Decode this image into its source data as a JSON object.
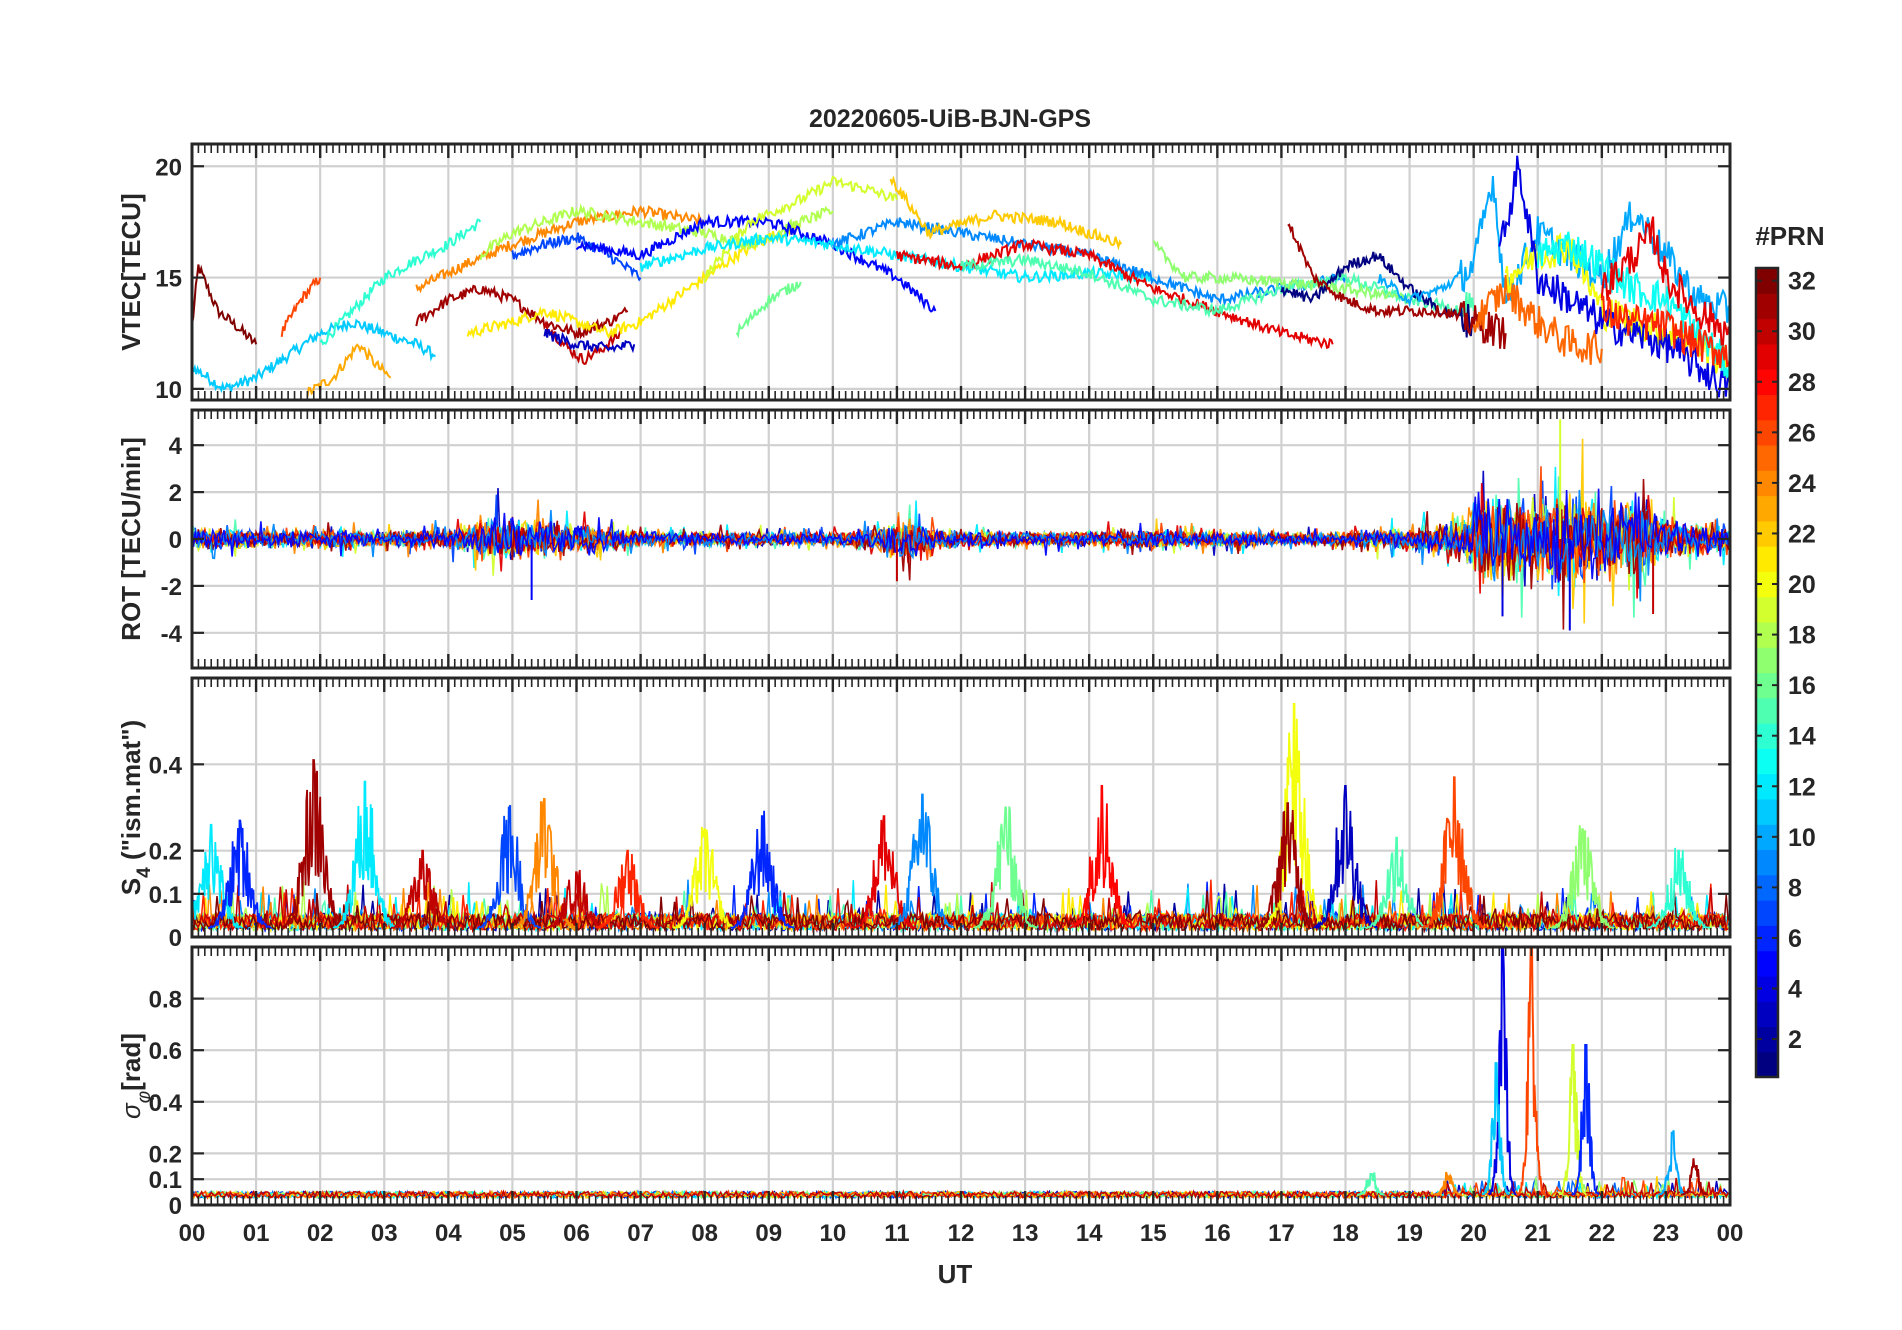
{
  "figure": {
    "title": "20220605-UiB-BJN-GPS",
    "xlabel": "UT",
    "colorbar_label": "#PRN"
  },
  "chart_data": [
    {
      "type": "line",
      "panel": "vtec",
      "ylabel": "VTEC[TECU]",
      "xlim": [
        0,
        24
      ],
      "ylim": [
        9.5,
        21
      ],
      "yticks": [
        10,
        15,
        20
      ],
      "xticks": [
        0,
        1,
        2,
        3,
        4,
        5,
        6,
        7,
        8,
        9,
        10,
        11,
        12,
        13,
        14,
        15,
        16,
        17,
        18,
        19,
        20,
        21,
        22,
        23,
        24
      ],
      "xticklabels": [
        "00",
        "01",
        "02",
        "03",
        "04",
        "05",
        "06",
        "07",
        "08",
        "09",
        "10",
        "11",
        "12",
        "13",
        "14",
        "15",
        "16",
        "17",
        "18",
        "19",
        "20",
        "21",
        "22",
        "23",
        "00"
      ],
      "grid": true,
      "series": [
        {
          "prn": 32,
          "x": [
            0.0,
            0.1,
            0.4,
            0.7,
            1.0
          ],
          "y": [
            12.8,
            15.5,
            13.5,
            12.8,
            12.0
          ]
        },
        {
          "prn": 11,
          "x": [
            0.0,
            0.5,
            1.0,
            1.5,
            2.0,
            2.5,
            3.0,
            3.5,
            3.8
          ],
          "y": [
            11.0,
            10.0,
            10.5,
            11.5,
            12.5,
            13.0,
            12.5,
            12.0,
            11.5
          ]
        },
        {
          "prn": 26,
          "x": [
            1.4,
            1.7,
            2.0
          ],
          "y": [
            12.5,
            14.0,
            15.0
          ]
        },
        {
          "prn": 23,
          "x": [
            1.8,
            2.2,
            2.6,
            2.9,
            3.1
          ],
          "y": [
            9.8,
            10.5,
            12.0,
            11.0,
            10.5
          ]
        },
        {
          "prn": 14,
          "x": [
            2.0,
            2.5,
            3.0,
            3.5,
            4.0,
            4.5
          ],
          "y": [
            12.0,
            13.5,
            15.0,
            15.8,
            16.5,
            17.5
          ]
        },
        {
          "prn": 24,
          "x": [
            3.5,
            4.2,
            5.0,
            6.0,
            7.0,
            8.0
          ],
          "y": [
            14.5,
            15.5,
            16.5,
            17.5,
            18.0,
            17.5
          ]
        },
        {
          "prn": 31,
          "x": [
            3.5,
            4.0,
            4.5,
            5.0,
            5.5,
            6.0,
            6.5,
            6.8
          ],
          "y": [
            13.0,
            14.0,
            14.5,
            14.0,
            13.0,
            12.5,
            13.0,
            13.5
          ]
        },
        {
          "prn": 30,
          "x": [
            5.5,
            5.8,
            6.1,
            6.4,
            6.7
          ],
          "y": [
            13.0,
            12.0,
            11.3,
            11.8,
            12.5
          ]
        },
        {
          "prn": 21,
          "x": [
            4.3,
            5.0,
            5.5,
            6.0,
            6.5,
            7.0,
            7.5,
            8.0,
            8.5,
            9.0,
            9.5
          ],
          "y": [
            12.5,
            13.0,
            13.5,
            13.0,
            12.5,
            13.0,
            14.0,
            15.0,
            16.0,
            16.8,
            17.3
          ]
        },
        {
          "prn": 18,
          "x": [
            4.5,
            5.0,
            6.0,
            7.0,
            8.0,
            8.7,
            9.5,
            10.0
          ],
          "y": [
            16.0,
            17.0,
            18.0,
            17.5,
            17.0,
            16.5,
            17.5,
            18.0
          ]
        },
        {
          "prn": 7,
          "x": [
            5.0,
            5.5,
            6.0,
            6.5,
            7.0
          ],
          "y": [
            16.0,
            16.5,
            16.8,
            16.0,
            15.0
          ]
        },
        {
          "prn": 3,
          "x": [
            5.5,
            6.0,
            6.5,
            6.9
          ],
          "y": [
            12.5,
            12.0,
            11.8,
            12.0
          ]
        },
        {
          "prn": 5,
          "x": [
            6.0,
            7.0,
            8.0,
            9.0,
            10.0,
            11.0,
            11.6
          ],
          "y": [
            16.5,
            16.0,
            17.5,
            17.5,
            16.5,
            15.0,
            13.5
          ]
        },
        {
          "prn": 19,
          "x": [
            8.0,
            8.7,
            9.5,
            10.0,
            10.5,
            11.0
          ],
          "y": [
            15.0,
            17.5,
            18.5,
            19.3,
            19.0,
            18.5
          ]
        },
        {
          "prn": 12,
          "x": [
            7.0,
            8.0,
            9.0,
            10.0,
            11.0,
            12.0,
            13.0,
            14.0,
            15.0
          ],
          "y": [
            15.5,
            16.3,
            16.8,
            16.5,
            16.0,
            15.5,
            15.0,
            15.2,
            15.0
          ]
        },
        {
          "prn": 16,
          "x": [
            8.5,
            9.0,
            9.5
          ],
          "y": [
            12.5,
            14.0,
            14.8
          ]
        },
        {
          "prn": 9,
          "x": [
            10.0,
            11.0,
            12.0,
            13.0,
            14.0,
            15.0,
            16.0,
            17.0,
            18.0
          ],
          "y": [
            16.5,
            17.5,
            17.0,
            16.5,
            16.0,
            15.0,
            14.0,
            14.5,
            15.0
          ]
        },
        {
          "prn": 29,
          "x": [
            11.0,
            12.0,
            13.0,
            14.0,
            15.0,
            16.0,
            17.0,
            17.8
          ],
          "y": [
            16.0,
            15.5,
            16.5,
            16.0,
            14.5,
            13.5,
            12.5,
            12.0
          ]
        },
        {
          "prn": 22,
          "x": [
            10.9,
            11.5,
            12.5,
            13.5,
            14.5
          ],
          "y": [
            19.5,
            17.0,
            17.8,
            17.5,
            16.5
          ]
        },
        {
          "prn": 15,
          "x": [
            12.0,
            13.0,
            14.0,
            15.0,
            16.0,
            17.0,
            18.0,
            19.0,
            20.0
          ],
          "y": [
            15.5,
            15.8,
            15.2,
            14.0,
            13.5,
            14.5,
            15.0,
            14.0,
            13.5
          ]
        },
        {
          "prn": 17,
          "x": [
            15.0,
            15.5,
            16.0,
            17.0,
            18.0,
            19.0
          ],
          "y": [
            16.5,
            15.0,
            15.0,
            14.8,
            14.5,
            14.0
          ]
        },
        {
          "prn": 1,
          "x": [
            17.0,
            17.5,
            18.0,
            18.5,
            19.0,
            19.5,
            20.0
          ],
          "y": [
            14.5,
            14.0,
            15.5,
            16.0,
            14.5,
            13.5,
            13.0
          ]
        },
        {
          "prn": 31,
          "x": [
            17.1,
            17.5,
            18.0,
            18.5,
            19.0,
            19.5,
            20.0,
            20.5
          ],
          "y": [
            17.5,
            15.0,
            14.0,
            13.5,
            13.5,
            13.5,
            13.0,
            12.5
          ]
        },
        {
          "prn": 10,
          "x": [
            18.5,
            19.0,
            19.5,
            20.0,
            20.3,
            20.5,
            21.0,
            21.5,
            22.0,
            22.5,
            23.0,
            23.5,
            24.0
          ],
          "y": [
            15.0,
            14.0,
            14.5,
            15.5,
            19.5,
            14.0,
            17.0,
            16.0,
            15.0,
            18.0,
            16.0,
            14.0,
            13.5
          ]
        },
        {
          "prn": 25,
          "x": [
            20.0,
            20.5,
            21.0,
            21.5,
            22.0
          ],
          "y": [
            13.0,
            14.5,
            13.0,
            12.0,
            11.8
          ]
        },
        {
          "prn": 20,
          "x": [
            20.5,
            21.0,
            21.5,
            22.0,
            22.5,
            23.0,
            23.5,
            24.0
          ],
          "y": [
            15.0,
            16.0,
            16.5,
            13.5,
            13.0,
            12.5,
            12.0,
            11.0
          ]
        },
        {
          "prn": 4,
          "x": [
            20.4,
            20.7,
            21.0,
            21.5,
            22.0,
            22.5,
            23.0,
            23.5,
            24.0
          ],
          "y": [
            16.0,
            20.0,
            15.0,
            14.0,
            13.0,
            12.5,
            12.0,
            11.0,
            10.0
          ]
        },
        {
          "prn": 13,
          "x": [
            21.0,
            21.5,
            22.0,
            22.5,
            23.0,
            23.5,
            24.0
          ],
          "y": [
            16.0,
            16.5,
            15.5,
            14.5,
            14.0,
            12.5,
            11.0
          ]
        },
        {
          "prn": 29,
          "x": [
            22.0,
            22.5,
            22.8,
            23.0,
            23.5,
            24.0
          ],
          "y": [
            14.5,
            16.0,
            17.0,
            15.0,
            13.5,
            12.5
          ]
        },
        {
          "prn": 27,
          "x": [
            22.0,
            22.5,
            23.0,
            23.5,
            24.0
          ],
          "y": [
            13.5,
            13.0,
            12.8,
            12.0,
            11.5
          ]
        }
      ]
    },
    {
      "type": "line",
      "panel": "rot",
      "ylabel": "ROT [TECU/min]",
      "xlim": [
        0,
        24
      ],
      "ylim": [
        -5.5,
        5.5
      ],
      "yticks": [
        -4,
        -2,
        0,
        2,
        4
      ],
      "grid": true,
      "noise_profile": {
        "note": "rate of TEC fluctuates around 0 for all PRNs; amplitude (TECU/min) by UT hour",
        "x": [
          0,
          1,
          2,
          3,
          4,
          4.5,
          5,
          5.5,
          6,
          7,
          8,
          9,
          10,
          10.8,
          11.2,
          11.5,
          12,
          13,
          14,
          15,
          16,
          17,
          18,
          19,
          19.8,
          20.2,
          20.6,
          21,
          21.5,
          22,
          22.5,
          23,
          24
        ],
        "amplitude": [
          0.8,
          0.6,
          0.6,
          0.5,
          0.6,
          1.2,
          1.6,
          1.2,
          1.0,
          0.5,
          0.5,
          0.4,
          0.4,
          0.9,
          1.4,
          0.9,
          0.5,
          0.5,
          0.5,
          0.6,
          0.5,
          0.4,
          0.5,
          0.7,
          1.2,
          3.2,
          3.0,
          2.8,
          3.5,
          2.4,
          2.6,
          1.5,
          0.8
        ]
      },
      "peaks": [
        {
          "prn": 4,
          "x": 21.5,
          "y": -3.9
        },
        {
          "prn": 19,
          "x": 21.35,
          "y": 5.1
        },
        {
          "prn": 4,
          "x": 20.45,
          "y": -3.3
        },
        {
          "prn": 30,
          "x": 22.8,
          "y": -3.2
        },
        {
          "prn": 5,
          "x": 5.3,
          "y": -2.6
        },
        {
          "prn": 30,
          "x": 11.0,
          "y": -1.8
        }
      ]
    },
    {
      "type": "line",
      "panel": "s4",
      "ylabel": "S4 (\"ism.mat\")",
      "xlim": [
        0,
        24
      ],
      "ylim": [
        0,
        0.6
      ],
      "yticks": [
        0,
        0.1,
        0.2,
        0.4
      ],
      "grid": true,
      "bursts": [
        {
          "prn": 12,
          "x": 0.3,
          "peak": 0.26
        },
        {
          "prn": 6,
          "x": 0.75,
          "peak": 0.27
        },
        {
          "prn": 31,
          "x": 1.9,
          "peak": 0.41
        },
        {
          "prn": 12,
          "x": 2.7,
          "peak": 0.36
        },
        {
          "prn": 30,
          "x": 3.6,
          "peak": 0.2
        },
        {
          "prn": 7,
          "x": 4.95,
          "peak": 0.3
        },
        {
          "prn": 24,
          "x": 5.5,
          "peak": 0.32
        },
        {
          "prn": 30,
          "x": 6.0,
          "peak": 0.15
        },
        {
          "prn": 27,
          "x": 6.8,
          "peak": 0.2
        },
        {
          "prn": 20,
          "x": 8.0,
          "peak": 0.25
        },
        {
          "prn": 6,
          "x": 8.9,
          "peak": 0.28
        },
        {
          "prn": 29,
          "x": 10.8,
          "peak": 0.28
        },
        {
          "prn": 9,
          "x": 11.4,
          "peak": 0.33
        },
        {
          "prn": 16,
          "x": 12.7,
          "peak": 0.3
        },
        {
          "prn": 28,
          "x": 14.2,
          "peak": 0.35
        },
        {
          "prn": 20,
          "x": 17.2,
          "peak": 0.54
        },
        {
          "prn": 31,
          "x": 17.1,
          "peak": 0.31
        },
        {
          "prn": 3,
          "x": 18.0,
          "peak": 0.35
        },
        {
          "prn": 15,
          "x": 18.8,
          "peak": 0.23
        },
        {
          "prn": 26,
          "x": 19.7,
          "peak": 0.37
        },
        {
          "prn": 17,
          "x": 21.7,
          "peak": 0.25
        },
        {
          "prn": 14,
          "x": 23.2,
          "peak": 0.2
        }
      ]
    },
    {
      "type": "line",
      "panel": "sigma_phi",
      "ylabel": "σφ[rad]",
      "xlim": [
        0,
        24
      ],
      "ylim": [
        0,
        1
      ],
      "yticks": [
        0,
        0.1,
        0.2,
        0.4,
        0.6,
        0.8
      ],
      "grid": true,
      "baseline": 0.04,
      "spikes": [
        {
          "prn": 4,
          "x": 20.45,
          "peak": 1.0
        },
        {
          "prn": 11,
          "x": 20.35,
          "peak": 0.55
        },
        {
          "prn": 26,
          "x": 20.9,
          "peak": 1.0
        },
        {
          "prn": 19,
          "x": 21.55,
          "peak": 0.62
        },
        {
          "prn": 6,
          "x": 21.75,
          "peak": 0.62
        },
        {
          "prn": 10,
          "x": 23.1,
          "peak": 0.28
        },
        {
          "prn": 31,
          "x": 23.45,
          "peak": 0.15
        },
        {
          "prn": 15,
          "x": 18.4,
          "peak": 0.12
        },
        {
          "prn": 24,
          "x": 19.6,
          "peak": 0.1
        }
      ]
    }
  ],
  "colorbar": {
    "colormap": "jet",
    "min": 1,
    "max": 32,
    "ticks": [
      2,
      4,
      6,
      8,
      10,
      12,
      14,
      16,
      18,
      20,
      22,
      24,
      26,
      28,
      30,
      32
    ]
  }
}
